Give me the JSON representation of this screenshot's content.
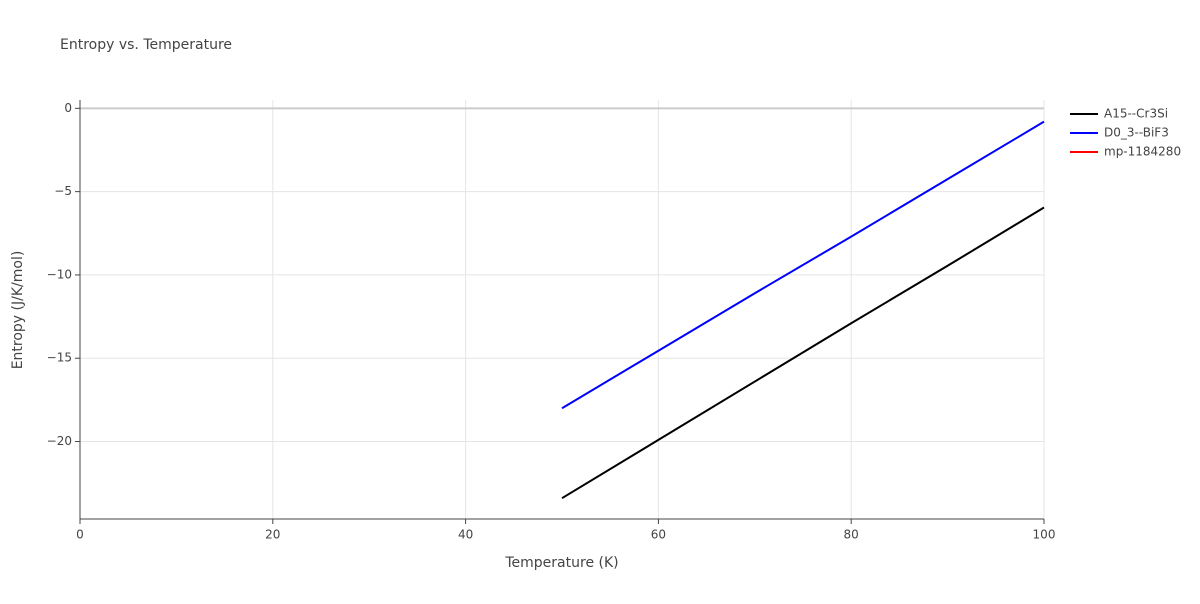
{
  "chart_data": {
    "type": "line",
    "title": "Entropy vs. Temperature",
    "x_label": "Temperature (K)",
    "y_label": "Entropy (J/K/mol)",
    "x": [
      50,
      60,
      70,
      80,
      90,
      100
    ],
    "series": [
      {
        "name": "A15--Cr3Si",
        "color": "#000000",
        "values": [
          -23.4,
          -19.9,
          -16.4,
          -12.9,
          -9.45,
          -5.95
        ]
      },
      {
        "name": "D0_3--BiF3",
        "color": "#0000ff",
        "values": [
          -18,
          -14.55,
          -11.1,
          -7.7,
          -4.25,
          -0.8
        ]
      },
      {
        "name": "mp-1184280",
        "color": "#ff0000",
        "values": [
          null,
          null,
          null,
          null,
          null,
          null
        ]
      }
    ],
    "xlim": [
      0,
      100
    ],
    "xticks": [
      0,
      20,
      40,
      60,
      80,
      100
    ],
    "ylim": [
      -24.65,
      0.5
    ],
    "yticks": [
      0,
      -5,
      -10,
      -15,
      -20
    ],
    "grid": true
  }
}
